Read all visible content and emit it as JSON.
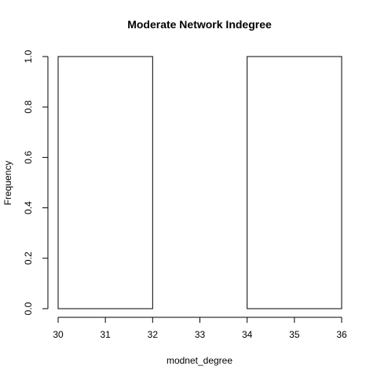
{
  "chart_data": {
    "type": "bar",
    "title": "Moderate Network Indegree",
    "xlabel": "modnet_degree",
    "ylabel": "Frequency",
    "bins": [
      {
        "from": 30,
        "to": 32,
        "value": 1.0
      },
      {
        "from": 32,
        "to": 34,
        "value": 0.0
      },
      {
        "from": 34,
        "to": 36,
        "value": 1.0
      }
    ],
    "xlim": [
      30,
      36
    ],
    "ylim": [
      0,
      1
    ],
    "x_ticks": [
      30,
      31,
      32,
      33,
      34,
      35,
      36
    ],
    "y_ticks": [
      "0.0",
      "0.2",
      "0.4",
      "0.6",
      "0.8",
      "1.0"
    ],
    "grid": false,
    "legend": "none"
  }
}
